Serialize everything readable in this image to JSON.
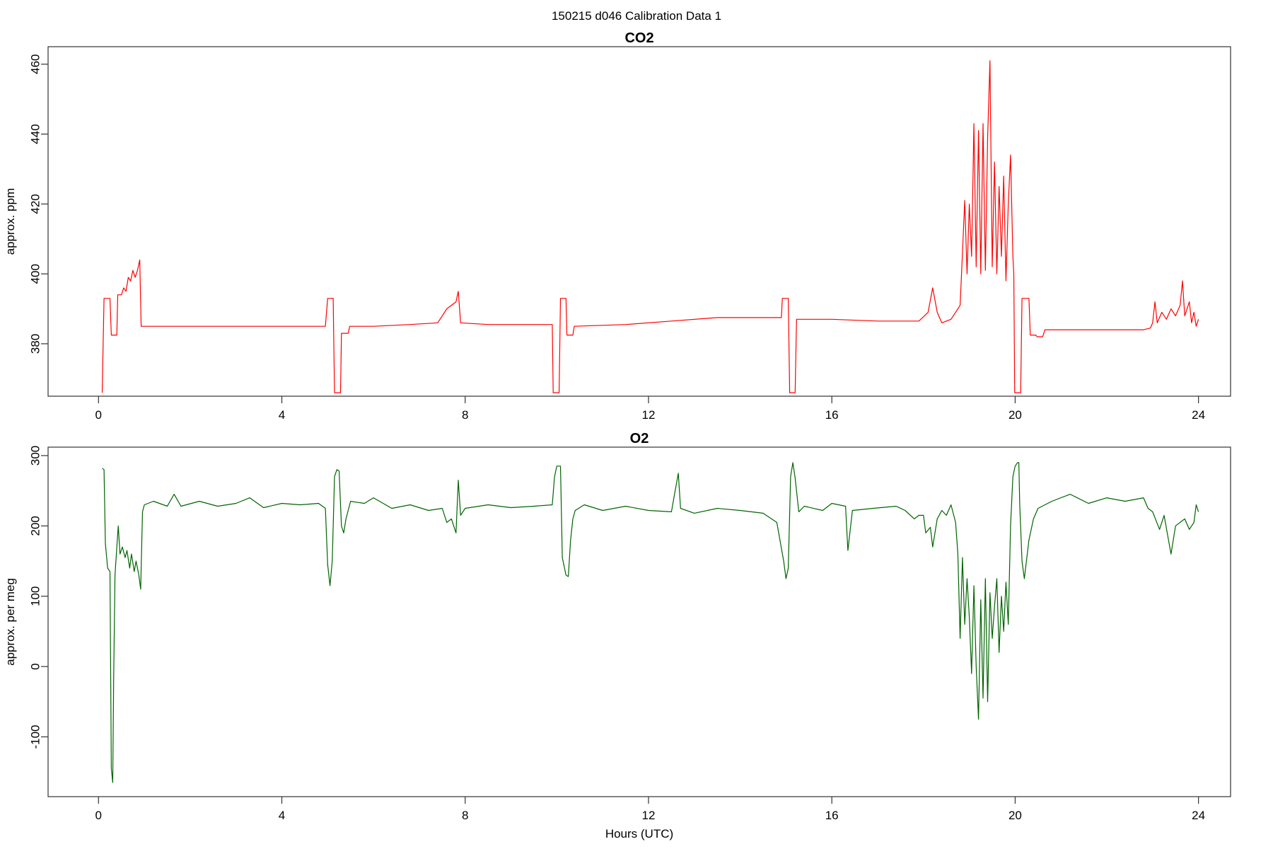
{
  "figure_title": "150215   d046   Calibration Data 1",
  "chart_data": [
    {
      "type": "line",
      "title": "CO2",
      "xlabel": "",
      "ylabel": "approx. ppm",
      "xlim": [
        -1.1,
        24.7
      ],
      "ylim": [
        365,
        465
      ],
      "xticks": [
        0,
        4,
        8,
        12,
        16,
        20,
        24
      ],
      "yticks": [
        380,
        400,
        420,
        440,
        460
      ],
      "color": "#ff0000",
      "series": [
        {
          "values": [
            [
              0.08,
              366
            ],
            [
              0.12,
              393
            ],
            [
              0.25,
              393
            ],
            [
              0.28,
              382.5
            ],
            [
              0.4,
              382.5
            ],
            [
              0.42,
              394
            ],
            [
              0.5,
              394
            ],
            [
              0.55,
              396
            ],
            [
              0.6,
              395
            ],
            [
              0.65,
              399
            ],
            [
              0.7,
              398
            ],
            [
              0.75,
              401
            ],
            [
              0.8,
              399
            ],
            [
              0.85,
              401
            ],
            [
              0.9,
              404
            ],
            [
              0.93,
              385
            ],
            [
              2,
              385
            ],
            [
              3,
              385
            ],
            [
              4,
              385
            ],
            [
              4.95,
              385
            ],
            [
              5.0,
              393
            ],
            [
              5.12,
              393
            ],
            [
              5.15,
              366
            ],
            [
              5.28,
              366
            ],
            [
              5.3,
              383
            ],
            [
              5.45,
              383
            ],
            [
              5.48,
              385
            ],
            [
              6,
              385
            ],
            [
              6.8,
              385.5
            ],
            [
              7.4,
              386
            ],
            [
              7.6,
              390
            ],
            [
              7.8,
              392
            ],
            [
              7.85,
              395
            ],
            [
              7.9,
              386
            ],
            [
              8.5,
              385.5
            ],
            [
              9.5,
              385.5
            ],
            [
              9.9,
              385.5
            ],
            [
              9.92,
              366
            ],
            [
              10.05,
              366
            ],
            [
              10.08,
              393
            ],
            [
              10.2,
              393
            ],
            [
              10.22,
              382.5
            ],
            [
              10.35,
              382.5
            ],
            [
              10.38,
              385
            ],
            [
              11.5,
              385.5
            ],
            [
              12.5,
              386.5
            ],
            [
              13.5,
              387.5
            ],
            [
              14.5,
              387.5
            ],
            [
              14.9,
              387.5
            ],
            [
              14.92,
              393
            ],
            [
              15.05,
              393
            ],
            [
              15.08,
              366
            ],
            [
              15.2,
              366
            ],
            [
              15.23,
              387
            ],
            [
              16,
              387
            ],
            [
              17,
              386.5
            ],
            [
              17.6,
              386.5
            ],
            [
              17.9,
              386.5
            ],
            [
              18.1,
              389
            ],
            [
              18.2,
              396
            ],
            [
              18.3,
              389
            ],
            [
              18.4,
              386
            ],
            [
              18.6,
              387
            ],
            [
              18.7,
              389
            ],
            [
              18.8,
              391
            ],
            [
              18.85,
              406
            ],
            [
              18.9,
              421
            ],
            [
              18.95,
              400
            ],
            [
              19.0,
              420
            ],
            [
              19.05,
              405
            ],
            [
              19.1,
              443
            ],
            [
              19.15,
              402
            ],
            [
              19.2,
              441
            ],
            [
              19.25,
              400
            ],
            [
              19.3,
              443
            ],
            [
              19.35,
              401
            ],
            [
              19.4,
              439
            ],
            [
              19.45,
              461
            ],
            [
              19.5,
              402
            ],
            [
              19.55,
              432
            ],
            [
              19.6,
              400
            ],
            [
              19.65,
              425
            ],
            [
              19.7,
              405
            ],
            [
              19.75,
              428
            ],
            [
              19.8,
              398
            ],
            [
              19.85,
              420
            ],
            [
              19.9,
              434
            ],
            [
              19.95,
              405
            ],
            [
              19.97,
              400
            ],
            [
              19.99,
              366
            ],
            [
              20.12,
              366
            ],
            [
              20.15,
              393
            ],
            [
              20.3,
              393
            ],
            [
              20.33,
              382.5
            ],
            [
              20.45,
              382.5
            ],
            [
              20.48,
              382
            ],
            [
              20.6,
              382
            ],
            [
              20.65,
              384
            ],
            [
              21.5,
              384
            ],
            [
              22.5,
              384
            ],
            [
              22.8,
              384
            ],
            [
              22.95,
              384.5
            ],
            [
              23.0,
              386
            ],
            [
              23.05,
              392
            ],
            [
              23.1,
              386
            ],
            [
              23.2,
              389
            ],
            [
              23.3,
              387
            ],
            [
              23.4,
              390
            ],
            [
              23.5,
              388
            ],
            [
              23.6,
              391
            ],
            [
              23.65,
              398
            ],
            [
              23.7,
              388
            ],
            [
              23.8,
              392
            ],
            [
              23.85,
              386
            ],
            [
              23.9,
              389
            ],
            [
              23.95,
              385
            ],
            [
              24.0,
              387
            ]
          ]
        }
      ]
    },
    {
      "type": "line",
      "title": "O2",
      "xlabel": "Hours (UTC)",
      "ylabel": "approx. per meg",
      "xlim": [
        -1.1,
        24.7
      ],
      "ylim": [
        -185,
        312
      ],
      "xticks": [
        0,
        4,
        8,
        12,
        16,
        20,
        24
      ],
      "yticks": [
        -100,
        0,
        100,
        200,
        300
      ],
      "color": "#006400",
      "series": [
        {
          "values": [
            [
              0.08,
              282
            ],
            [
              0.12,
              280
            ],
            [
              0.15,
              175
            ],
            [
              0.2,
              140
            ],
            [
              0.25,
              135
            ],
            [
              0.28,
              -145
            ],
            [
              0.31,
              -165
            ],
            [
              0.33,
              -20
            ],
            [
              0.36,
              130
            ],
            [
              0.4,
              170
            ],
            [
              0.43,
              200
            ],
            [
              0.47,
              160
            ],
            [
              0.52,
              170
            ],
            [
              0.58,
              155
            ],
            [
              0.62,
              165
            ],
            [
              0.68,
              140
            ],
            [
              0.72,
              160
            ],
            [
              0.78,
              135
            ],
            [
              0.82,
              150
            ],
            [
              0.88,
              130
            ],
            [
              0.92,
              110
            ],
            [
              0.96,
              220
            ],
            [
              1.0,
              230
            ],
            [
              1.2,
              235
            ],
            [
              1.5,
              228
            ],
            [
              1.65,
              245
            ],
            [
              1.8,
              228
            ],
            [
              2.2,
              235
            ],
            [
              2.6,
              228
            ],
            [
              3.0,
              232
            ],
            [
              3.3,
              240
            ],
            [
              3.6,
              226
            ],
            [
              4.0,
              232
            ],
            [
              4.4,
              230
            ],
            [
              4.8,
              232
            ],
            [
              4.95,
              225
            ],
            [
              5.0,
              145
            ],
            [
              5.05,
              115
            ],
            [
              5.1,
              150
            ],
            [
              5.15,
              270
            ],
            [
              5.2,
              280
            ],
            [
              5.25,
              278
            ],
            [
              5.3,
              200
            ],
            [
              5.35,
              190
            ],
            [
              5.4,
              210
            ],
            [
              5.5,
              235
            ],
            [
              5.8,
              232
            ],
            [
              6.0,
              240
            ],
            [
              6.4,
              225
            ],
            [
              6.8,
              230
            ],
            [
              7.2,
              222
            ],
            [
              7.5,
              225
            ],
            [
              7.6,
              205
            ],
            [
              7.7,
              210
            ],
            [
              7.8,
              190
            ],
            [
              7.85,
              265
            ],
            [
              7.9,
              215
            ],
            [
              8.0,
              225
            ],
            [
              8.5,
              230
            ],
            [
              9.0,
              226
            ],
            [
              9.5,
              228
            ],
            [
              9.9,
              230
            ],
            [
              9.95,
              270
            ],
            [
              10.0,
              285
            ],
            [
              10.08,
              285
            ],
            [
              10.12,
              155
            ],
            [
              10.2,
              130
            ],
            [
              10.25,
              128
            ],
            [
              10.3,
              180
            ],
            [
              10.35,
              210
            ],
            [
              10.4,
              222
            ],
            [
              10.6,
              230
            ],
            [
              11.0,
              222
            ],
            [
              11.5,
              228
            ],
            [
              12.0,
              222
            ],
            [
              12.5,
              220
            ],
            [
              12.65,
              275
            ],
            [
              12.7,
              225
            ],
            [
              13.0,
              218
            ],
            [
              13.5,
              225
            ],
            [
              14.0,
              222
            ],
            [
              14.5,
              218
            ],
            [
              14.8,
              205
            ],
            [
              14.95,
              150
            ],
            [
              15.0,
              125
            ],
            [
              15.05,
              140
            ],
            [
              15.1,
              270
            ],
            [
              15.15,
              290
            ],
            [
              15.2,
              268
            ],
            [
              15.28,
              220
            ],
            [
              15.4,
              228
            ],
            [
              15.8,
              222
            ],
            [
              16.0,
              232
            ],
            [
              16.3,
              228
            ],
            [
              16.35,
              165
            ],
            [
              16.45,
              222
            ],
            [
              16.9,
              225
            ],
            [
              17.4,
              228
            ],
            [
              17.6,
              222
            ],
            [
              17.8,
              210
            ],
            [
              17.9,
              215
            ],
            [
              18.0,
              215
            ],
            [
              18.05,
              190
            ],
            [
              18.15,
              198
            ],
            [
              18.2,
              170
            ],
            [
              18.3,
              210
            ],
            [
              18.4,
              222
            ],
            [
              18.5,
              215
            ],
            [
              18.6,
              230
            ],
            [
              18.7,
              205
            ],
            [
              18.75,
              160
            ],
            [
              18.8,
              40
            ],
            [
              18.85,
              155
            ],
            [
              18.9,
              60
            ],
            [
              18.95,
              125
            ],
            [
              19.0,
              70
            ],
            [
              19.05,
              -10
            ],
            [
              19.1,
              115
            ],
            [
              19.15,
              0
            ],
            [
              19.2,
              -75
            ],
            [
              19.25,
              95
            ],
            [
              19.3,
              -45
            ],
            [
              19.35,
              125
            ],
            [
              19.4,
              -50
            ],
            [
              19.45,
              105
            ],
            [
              19.5,
              40
            ],
            [
              19.55,
              85
            ],
            [
              19.6,
              125
            ],
            [
              19.65,
              20
            ],
            [
              19.7,
              100
            ],
            [
              19.75,
              50
            ],
            [
              19.8,
              120
            ],
            [
              19.85,
              60
            ],
            [
              19.9,
              200
            ],
            [
              19.95,
              270
            ],
            [
              20.0,
              285
            ],
            [
              20.05,
              290
            ],
            [
              20.08,
              290
            ],
            [
              20.1,
              230
            ],
            [
              20.15,
              150
            ],
            [
              20.2,
              125
            ],
            [
              20.3,
              180
            ],
            [
              20.4,
              210
            ],
            [
              20.5,
              225
            ],
            [
              20.8,
              235
            ],
            [
              21.2,
              245
            ],
            [
              21.6,
              232
            ],
            [
              22.0,
              240
            ],
            [
              22.4,
              235
            ],
            [
              22.8,
              240
            ],
            [
              22.9,
              225
            ],
            [
              23.0,
              220
            ],
            [
              23.15,
              195
            ],
            [
              23.25,
              215
            ],
            [
              23.4,
              160
            ],
            [
              23.5,
              200
            ],
            [
              23.7,
              210
            ],
            [
              23.8,
              195
            ],
            [
              23.9,
              205
            ],
            [
              23.95,
              230
            ],
            [
              24.0,
              220
            ]
          ]
        }
      ]
    }
  ]
}
